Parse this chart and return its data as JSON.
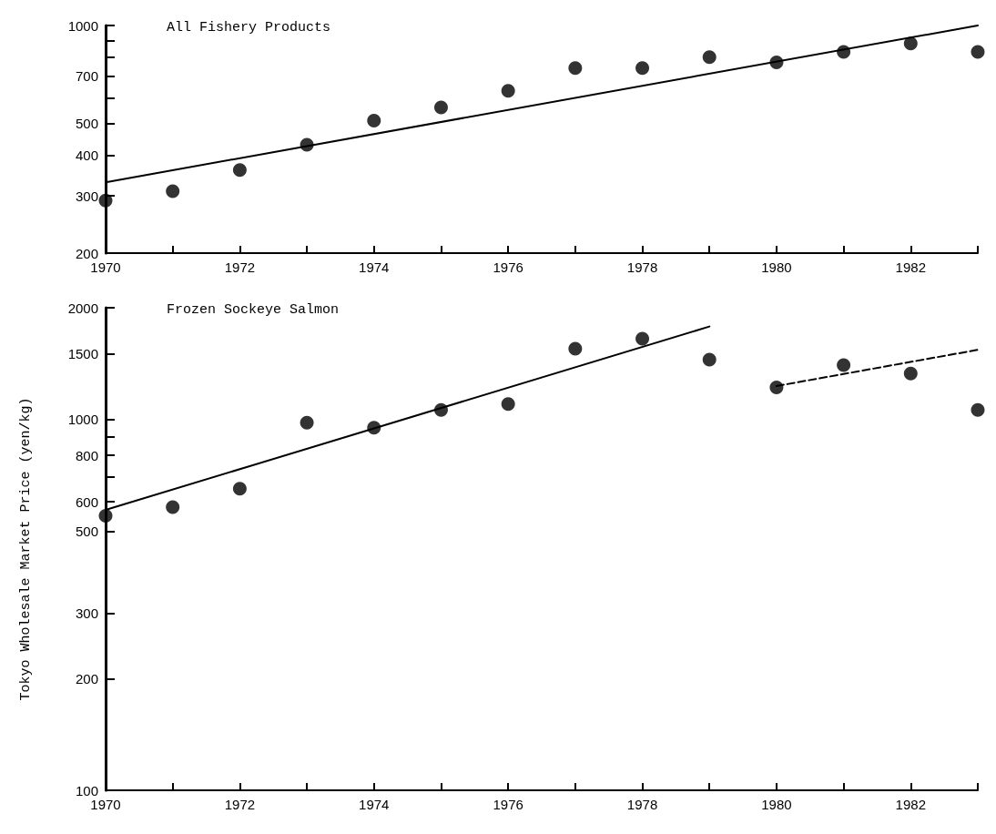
{
  "chart_data": [
    {
      "type": "scatter",
      "title": "All Fishery Products",
      "xlim": [
        1970,
        1983
      ],
      "xticks": [
        1970,
        {
          "value": 1971,
          "label": null
        },
        1972,
        {
          "value": 1973,
          "label": null
        },
        1974,
        {
          "value": 1975,
          "label": null
        },
        1976,
        {
          "value": 1977,
          "label": null
        },
        1978,
        {
          "value": 1979,
          "label": null
        },
        1980,
        {
          "value": 1981,
          "label": null
        },
        1982,
        {
          "value": 1983,
          "label": null
        }
      ],
      "ylim": [
        200,
        1000
      ],
      "yticks": [
        200,
        300,
        400,
        500,
        {
          "value": 600,
          "label": null
        },
        700,
        {
          "value": 800,
          "label": null
        },
        {
          "value": 900,
          "label": null
        },
        1000
      ],
      "log": "y",
      "grid": false,
      "series": [
        {
          "marker": "circle",
          "color": "#000000",
          "x": [
            1970,
            1971,
            1972,
            1973,
            1974,
            1975,
            1976,
            1977,
            1978,
            1979,
            1980,
            1981,
            1982,
            1983
          ],
          "values": [
            290,
            310,
            360,
            430,
            510,
            560,
            630,
            740,
            740,
            800,
            770,
            830,
            880,
            830
          ]
        },
        {
          "type": "line",
          "marker": "none",
          "line_style": "solid",
          "color": "#000000",
          "x": [
            1970,
            1983
          ],
          "values": [
            330,
            1000
          ]
        }
      ]
    },
    {
      "type": "scatter",
      "title": "Frozen Sockeye Salmon",
      "ylabel": "Tokyo Wholesale Market Price (yen/kg)",
      "xlim": [
        1970,
        1983
      ],
      "xticks": [
        1970,
        {
          "value": 1971,
          "label": null
        },
        1972,
        {
          "value": 1973,
          "label": null
        },
        1974,
        {
          "value": 1975,
          "label": null
        },
        1976,
        {
          "value": 1977,
          "label": null
        },
        1978,
        {
          "value": 1979,
          "label": null
        },
        1980,
        {
          "value": 1981,
          "label": null
        },
        1982,
        {
          "value": 1983,
          "label": null
        }
      ],
      "ylim": [
        100,
        2000
      ],
      "yticks": [
        100,
        200,
        300,
        500,
        600,
        {
          "value": 700,
          "label": null
        },
        800,
        {
          "value": 900,
          "label": null
        },
        1000,
        1500,
        2000
      ],
      "log": "y",
      "grid": false,
      "series": [
        {
          "marker": "circle",
          "color": "#000000",
          "x": [
            1970,
            1971,
            1972,
            1973,
            1974,
            1975,
            1976,
            1977,
            1978,
            1979
          ],
          "values": [
            550,
            580,
            650,
            980,
            950,
            1060,
            1100,
            1550,
            1650,
            1450
          ]
        },
        {
          "marker": "circle",
          "color": "#000000",
          "x": [
            1980,
            1981,
            1982,
            1983
          ],
          "values": [
            1220,
            1400,
            1330,
            1060
          ]
        },
        {
          "type": "line",
          "marker": "none",
          "line_style": "solid",
          "color": "#000000",
          "x": [
            1970,
            1979
          ],
          "values": [
            570,
            1780
          ]
        },
        {
          "type": "line",
          "marker": "none",
          "line_style": "dashed",
          "color": "#000000",
          "x": [
            1980,
            1983
          ],
          "values": [
            1230,
            1540
          ]
        }
      ]
    }
  ]
}
